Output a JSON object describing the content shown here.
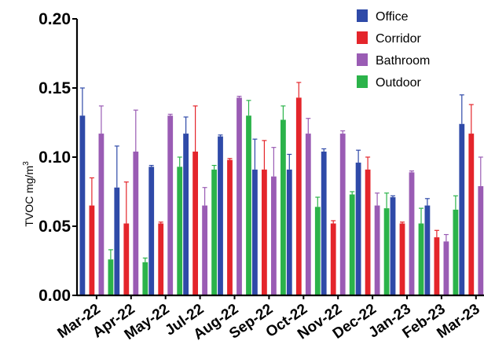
{
  "chart_data": {
    "type": "bar",
    "title": "",
    "xlabel": "",
    "ylabel": "TVOC mg/m",
    "ylabel_superscript": "3",
    "ylim": [
      0,
      0.2
    ],
    "yticks": [
      "0.00",
      "0.05",
      "0.10",
      "0.15",
      "0.20"
    ],
    "ytick_values": [
      0,
      0.05,
      0.1,
      0.15,
      0.2
    ],
    "legend_position": "top-right",
    "grid": false,
    "error_bars": "positive",
    "categories": [
      "Mar-22",
      "Apr-22",
      "May-22",
      "Jul-22",
      "Aug-22",
      "Sep-22",
      "Oct-22",
      "Nov-22",
      "Dec-22",
      "Jan-23",
      "Feb-23",
      "Mar-23"
    ],
    "series": [
      {
        "name": "Office",
        "color": "#2f4aa8",
        "values": [
          0.13,
          0.078,
          0.093,
          0.117,
          0.115,
          0.091,
          0.091,
          0.104,
          0.096,
          0.071,
          0.065,
          0.124
        ],
        "errors": [
          0.02,
          0.03,
          0.001,
          0.012,
          0.001,
          0.022,
          0.011,
          0.002,
          0.009,
          0.001,
          0.005,
          0.021
        ]
      },
      {
        "name": "Corridor",
        "color": "#e4252b",
        "values": [
          0.065,
          0.052,
          0.052,
          0.104,
          0.098,
          0.091,
          0.143,
          0.052,
          0.091,
          0.052,
          0.042,
          0.117
        ],
        "errors": [
          0.02,
          0.03,
          0.001,
          0.033,
          0.001,
          0.021,
          0.011,
          0.002,
          0.009,
          0.001,
          0.005,
          0.021
        ]
      },
      {
        "name": "Bathroom",
        "color": "#9a5cb4",
        "values": [
          0.117,
          0.104,
          0.13,
          0.065,
          0.143,
          0.086,
          0.117,
          0.117,
          0.065,
          0.089,
          0.039,
          0.079
        ],
        "errors": [
          0.02,
          0.03,
          0.001,
          0.013,
          0.001,
          0.021,
          0.011,
          0.002,
          0.009,
          0.001,
          0.005,
          0.021
        ]
      },
      {
        "name": "Outdoor",
        "color": "#2bb34a",
        "values": [
          0.026,
          0.024,
          0.093,
          0.091,
          0.13,
          0.127,
          0.064,
          0.073,
          0.063,
          0.052,
          0.062,
          0.078
        ],
        "errors": [
          0.007,
          0.003,
          0.007,
          0.003,
          0.011,
          0.01,
          0.007,
          0.002,
          0.011,
          0.011,
          0.01,
          0.01
        ]
      }
    ]
  }
}
